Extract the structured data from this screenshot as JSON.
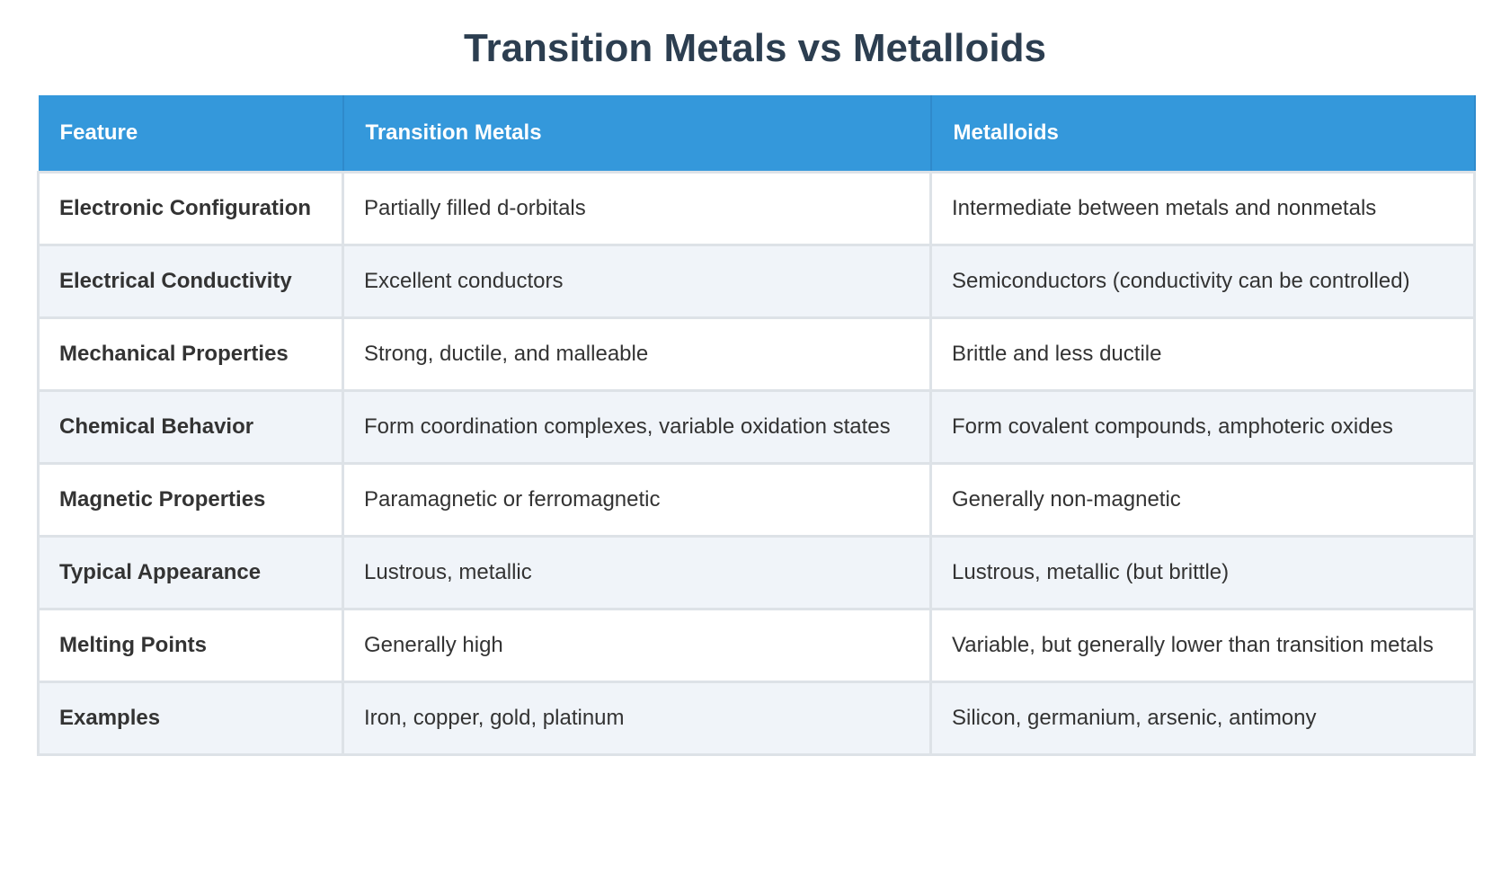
{
  "title": "Transition Metals vs Metalloids",
  "table": {
    "headers": [
      "Feature",
      "Transition Metals",
      "Metalloids"
    ],
    "rows": [
      [
        "Electronic Configuration",
        "Partially filled d-orbitals",
        "Intermediate between metals and nonmetals"
      ],
      [
        "Electrical Conductivity",
        "Excellent conductors",
        "Semiconductors (conductivity can be controlled)"
      ],
      [
        "Mechanical Properties",
        "Strong, ductile, and malleable",
        "Brittle and less ductile"
      ],
      [
        "Chemical Behavior",
        "Form coordination complexes, variable oxidation states",
        "Form covalent compounds, amphoteric oxides"
      ],
      [
        "Magnetic Properties",
        "Paramagnetic or ferromagnetic",
        "Generally non-magnetic"
      ],
      [
        "Typical Appearance",
        "Lustrous, metallic",
        "Lustrous, metallic (but brittle)"
      ],
      [
        "Melting Points",
        "Generally high",
        "Variable, but generally lower than transition metals"
      ],
      [
        "Examples",
        "Iron, copper, gold, platinum",
        "Silicon, germanium, arsenic, antimony"
      ]
    ]
  }
}
